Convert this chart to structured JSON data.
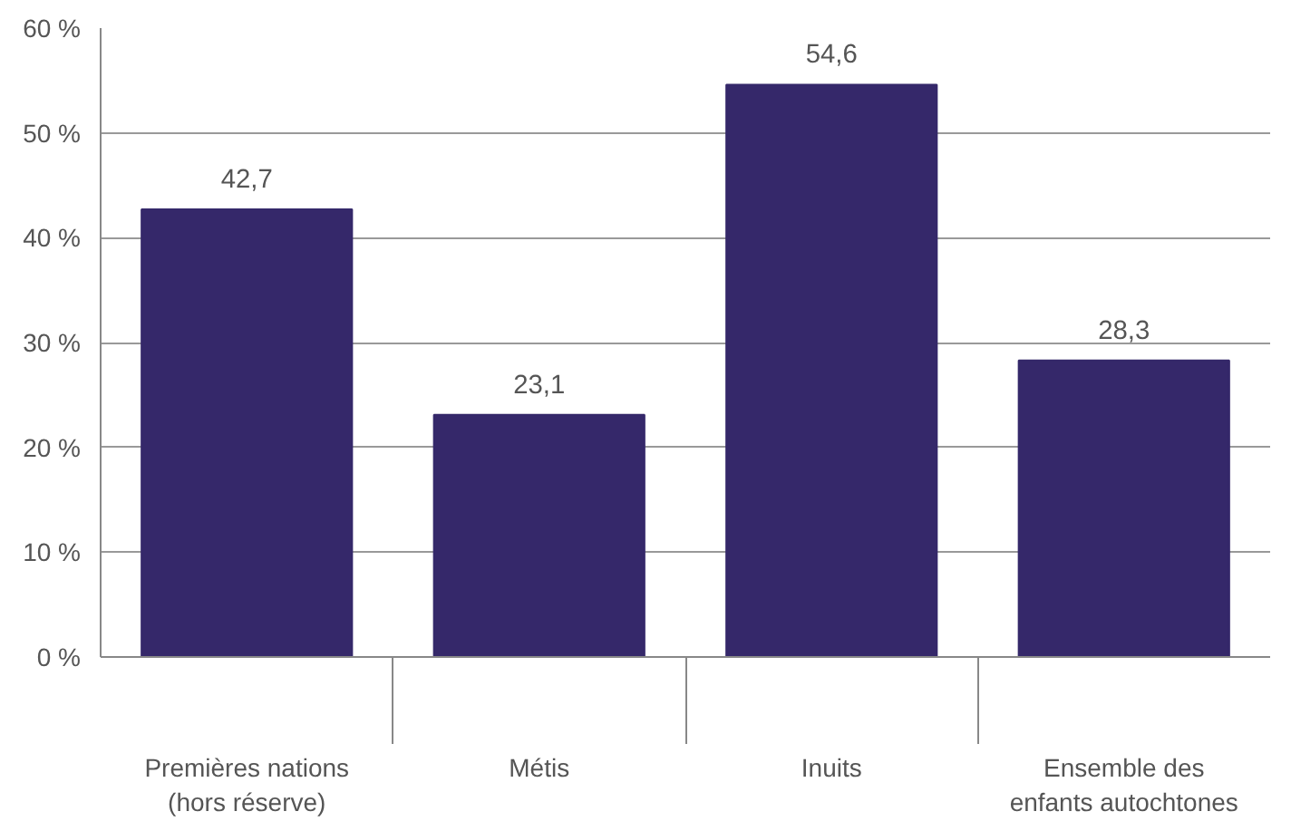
{
  "chart_data": {
    "type": "bar",
    "categories": [
      "Premières nations\n(hors réserve)",
      "Métis",
      "Inuits",
      "Ensemble des\nenfants autochtones"
    ],
    "values": [
      42.7,
      23.1,
      54.6,
      28.3
    ],
    "value_labels": [
      "42,7",
      "23,1",
      "54,6",
      "28,3"
    ],
    "color": "#35286a",
    "ylim": [
      0,
      60
    ],
    "yticks": [
      {
        "value": 0,
        "label": "0 %"
      },
      {
        "value": 10,
        "label": "10 %"
      },
      {
        "value": 20,
        "label": "20 %"
      },
      {
        "value": 30,
        "label": "30 %"
      },
      {
        "value": 40,
        "label": "40 %"
      },
      {
        "value": 50,
        "label": "50 %"
      },
      {
        "value": 60,
        "label": "60 %"
      }
    ],
    "grid": "y"
  }
}
